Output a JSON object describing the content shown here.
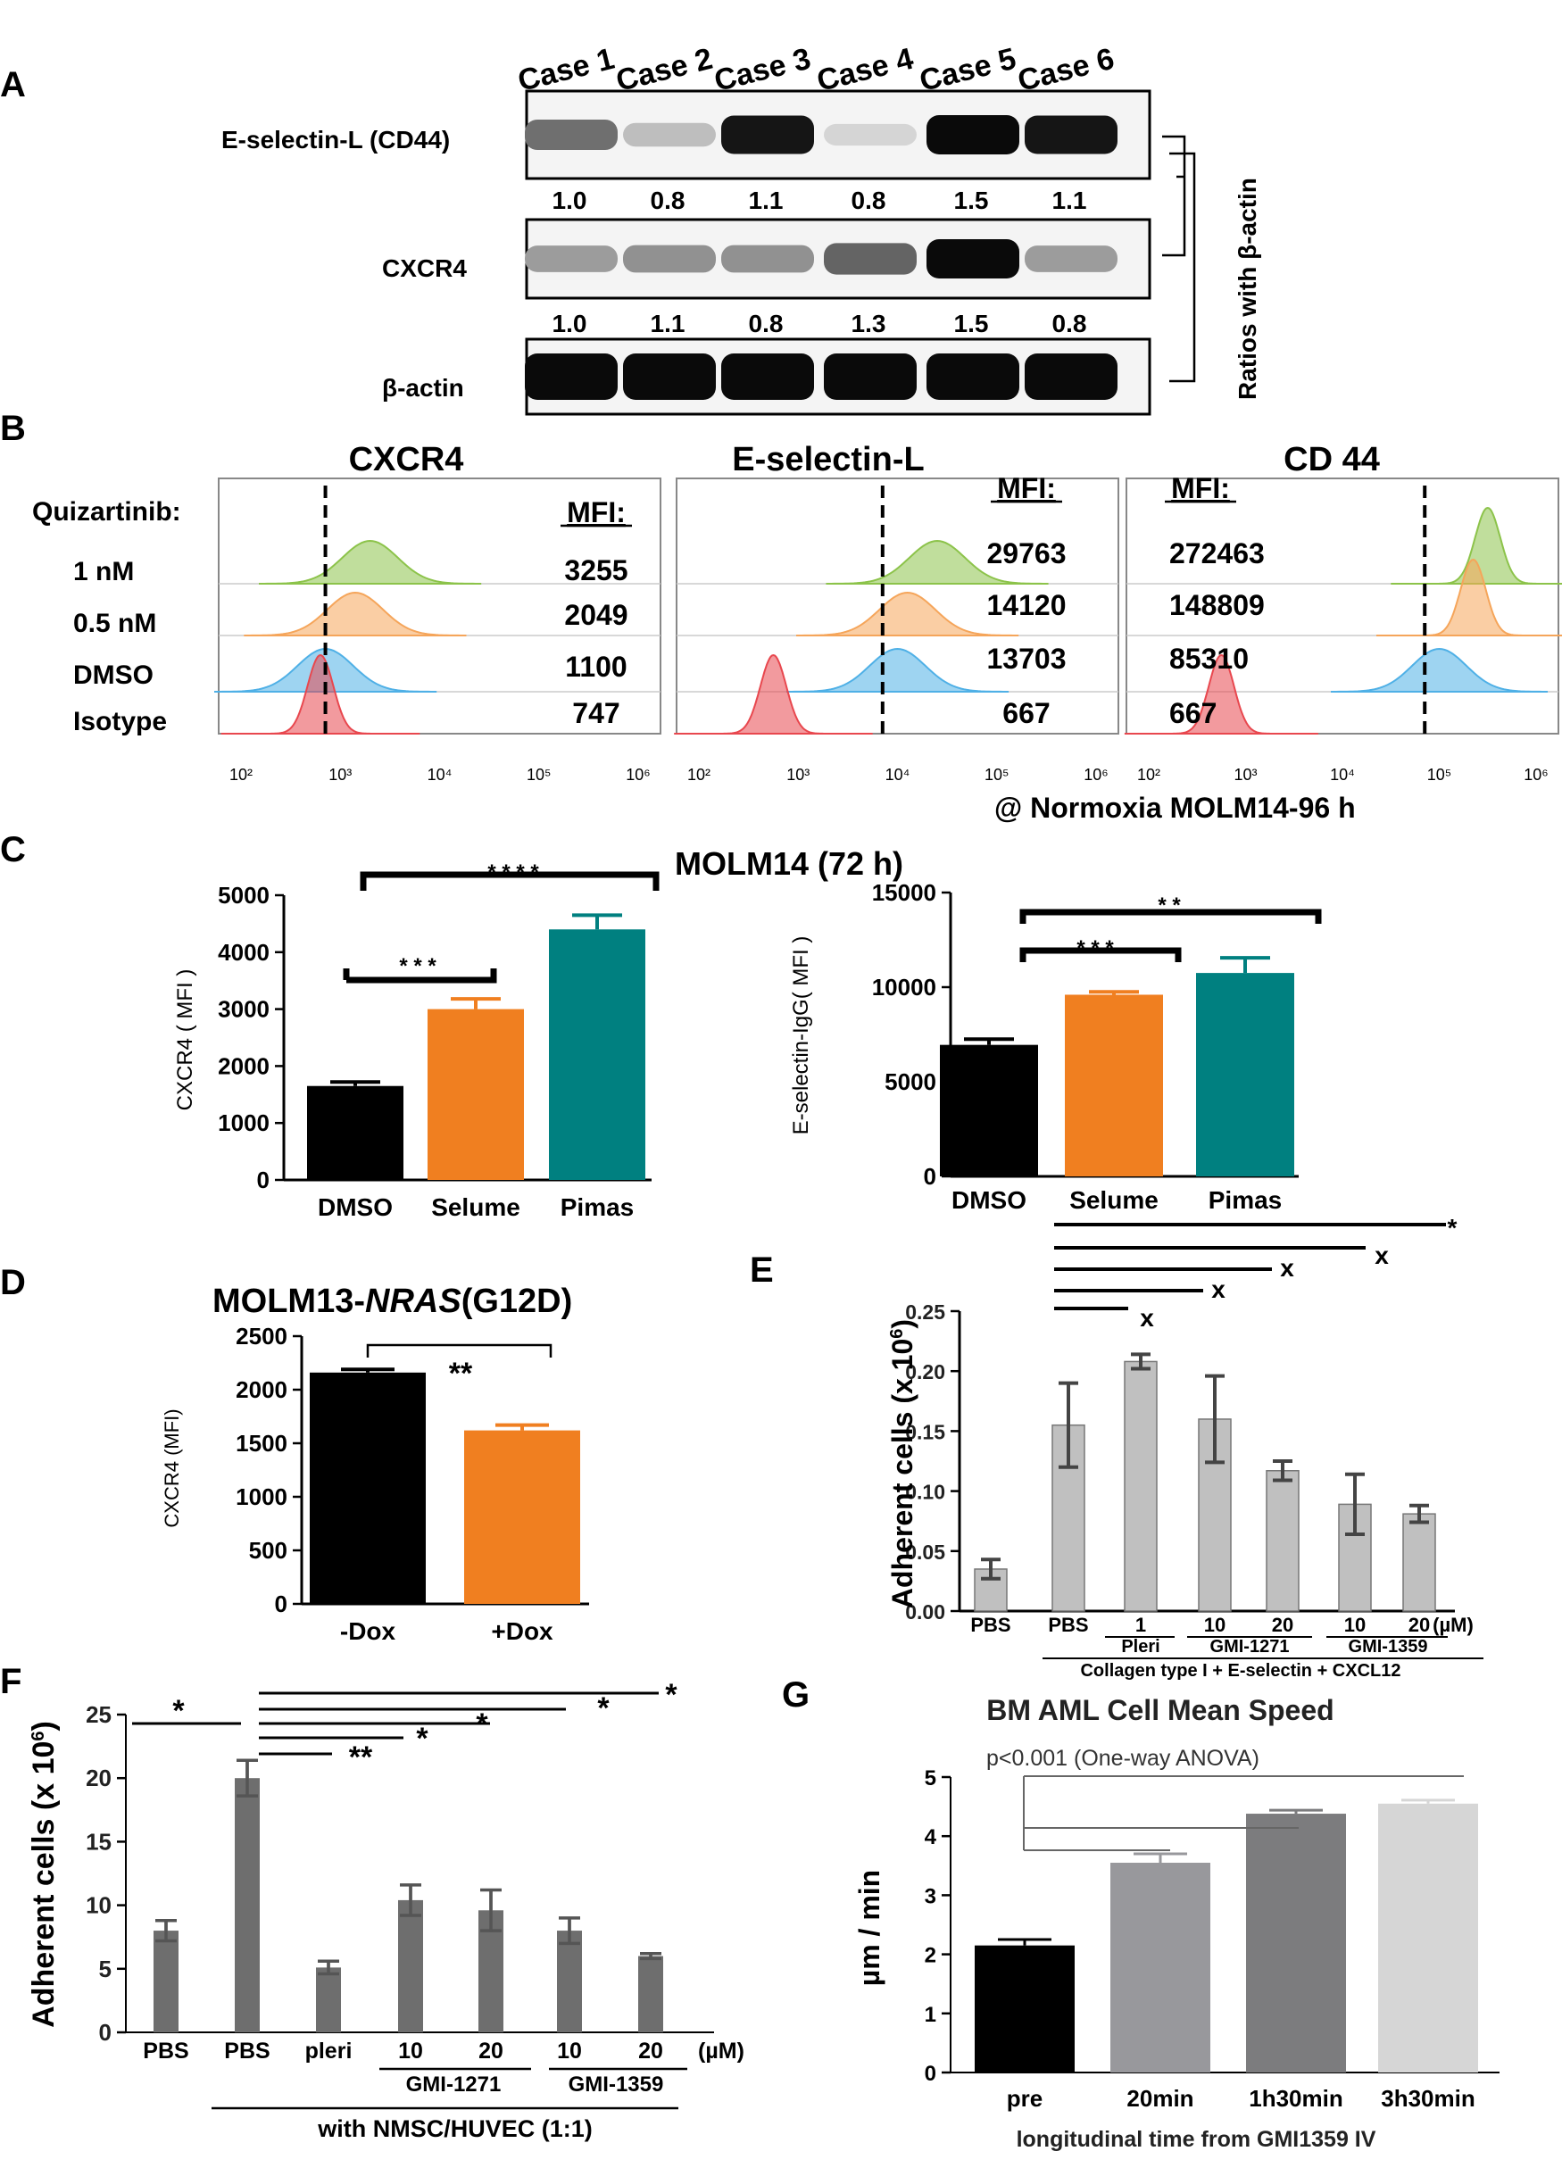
{
  "panel_letters": [
    "A",
    "B",
    "C",
    "D",
    "E",
    "F",
    "G"
  ],
  "panel_a": {
    "cases": [
      "Case 1",
      "Case 2",
      "Case 3",
      "Case 4",
      "Case 5",
      "Case 6"
    ],
    "blots": [
      {
        "label": "E-selectin-L (CD44)",
        "intensity": [
          0.55,
          0.2,
          0.95,
          0.1,
          1.0,
          0.95
        ]
      },
      {
        "label": "CXCR4",
        "intensity": [
          0.35,
          0.4,
          0.4,
          0.6,
          1.0,
          0.35
        ]
      },
      {
        "label": "β-actin",
        "intensity": [
          1.0,
          1.0,
          1.0,
          1.0,
          1.0,
          1.0
        ]
      }
    ],
    "ratios_row1": [
      "1.0",
      "0.8",
      "1.1",
      "0.8",
      "1.5",
      "1.1"
    ],
    "ratios_row2": [
      "1.0",
      "1.1",
      "0.8",
      "1.3",
      "1.5",
      "0.8"
    ],
    "side_label": "Ratios with β-actin"
  },
  "chart_data": [
    {
      "type": "histogram-overlay",
      "panel": "B",
      "row_header": "Quizartinib:",
      "row_labels": [
        "1 nM",
        "0.5 nM",
        "DMSO",
        "Isotype"
      ],
      "colors": {
        "1 nM": "#8cc34a",
        "0.5 nM": "#f5a55a",
        "DMSO": "#4fb0e6",
        "Isotype": "#e8474e"
      },
      "xaxis_ticks": [
        "10²",
        "10³",
        "10⁴",
        "10⁵",
        "10⁶"
      ],
      "mfi_label": "MFI:",
      "plots": [
        {
          "title": "CXCR4",
          "mfi": [
            "3255",
            "2049",
            "1100",
            "747"
          ],
          "peaks_log10": [
            3.3,
            3.15,
            2.85,
            2.8
          ],
          "dashed_log10": 2.85
        },
        {
          "title": "E-selectin-L",
          "mfi": [
            "29763",
            "14120",
            "13703",
            "667"
          ],
          "peaks_log10": [
            4.4,
            4.1,
            4.0,
            2.75
          ],
          "dashed_log10": 3.85
        },
        {
          "title": "CD 44",
          "mfi": [
            "272463",
            "148809",
            "85310",
            "667"
          ],
          "peaks_log10": [
            5.5,
            5.35,
            5.0,
            2.75
          ],
          "dashed_log10": 4.85
        }
      ],
      "footer": "@ Normoxia   MOLM14-96 h"
    },
    {
      "type": "bar",
      "panel": "C-left",
      "title": "MOLM14 (72 h)",
      "categories": [
        "DMSO",
        "Selume",
        "Pimas"
      ],
      "values": [
        1650,
        3000,
        4400
      ],
      "errors": [
        70,
        180,
        250
      ],
      "colors": [
        "#000000",
        "#f07f20",
        "#008080"
      ],
      "ylabel": "CXCR4 ( MFI )",
      "ylim": [
        0,
        5000
      ],
      "yticks": [
        "0",
        "1000",
        "2000",
        "3000",
        "4000",
        "5000"
      ],
      "significance": [
        {
          "from": "DMSO",
          "to": "Selume",
          "label": "* * *"
        },
        {
          "from": "DMSO",
          "to": "Pimas",
          "label": "* * * *"
        }
      ]
    },
    {
      "type": "bar",
      "panel": "C-right",
      "categories": [
        "DMSO",
        "Selume",
        "Pimas"
      ],
      "values": [
        6950,
        9600,
        10750
      ],
      "errors": [
        300,
        150,
        800
      ],
      "colors": [
        "#000000",
        "#f07f20",
        "#008080"
      ],
      "ylabel": "E-selectin-IgG( MFI )",
      "ylim": [
        0,
        15000
      ],
      "yticks": [
        "0",
        "5000",
        "10000",
        "15000"
      ],
      "significance": [
        {
          "from": "DMSO",
          "to": "Selume",
          "label": "* * *"
        },
        {
          "from": "DMSO",
          "to": "Pimas",
          "label": "* *"
        }
      ]
    },
    {
      "type": "bar",
      "panel": "D",
      "title": "MOLM13-",
      "title_italic": "NRAS",
      "title_suffix": "(G12D)",
      "categories": [
        "-Dox",
        "+Dox"
      ],
      "values": [
        2160,
        1620
      ],
      "errors": [
        30,
        50
      ],
      "colors": [
        "#000000",
        "#f07f20"
      ],
      "ylabel": "CXCR4 (MFI)",
      "ylim": [
        0,
        2500
      ],
      "yticks": [
        "0",
        "500",
        "1000",
        "1500",
        "2000",
        "2500"
      ],
      "significance": [
        {
          "from": "-Dox",
          "to": "+Dox",
          "label": "**"
        }
      ]
    },
    {
      "type": "bar",
      "panel": "E",
      "categories": [
        "PBS",
        "PBS",
        "1",
        "10",
        "20",
        "10",
        "20"
      ],
      "unit_label": "(µM)",
      "values": [
        0.035,
        0.155,
        0.208,
        0.16,
        0.117,
        0.089,
        0.081
      ],
      "errors": [
        0.008,
        0.035,
        0.006,
        0.036,
        0.008,
        0.025,
        0.007
      ],
      "ylabel": "Adherent cells (x 10",
      "ylabel_sup": "6",
      "ylabel_end": ")",
      "ylim": [
        0,
        0.25
      ],
      "yticks": [
        "0.00",
        "0.05",
        "0.10",
        "0.15",
        "0.20",
        "0.25"
      ],
      "groups": [
        "Pleri",
        "GMI-1271",
        "GMI-1359"
      ],
      "footer": "Collagen type I + E-selectin + CXCL12",
      "significance": [
        {
          "to": "1",
          "label": "x"
        },
        {
          "to": "10",
          "label": "x"
        },
        {
          "to": "10b",
          "label": "x"
        },
        {
          "to": "20b",
          "label": "*"
        }
      ]
    },
    {
      "type": "bar",
      "panel": "F",
      "categories": [
        "PBS",
        "PBS",
        "pleri",
        "10",
        "20",
        "10",
        "20"
      ],
      "unit_label": "(µM)",
      "values": [
        8.0,
        20.0,
        5.1,
        10.4,
        9.6,
        8.0,
        6.0
      ],
      "errors": [
        0.8,
        1.4,
        0.5,
        1.2,
        1.6,
        1.0,
        0.2
      ],
      "ylabel": "Adherent cells (x 10",
      "ylabel_sup": "6",
      "ylabel_end": ")",
      "ylim": [
        0,
        25
      ],
      "yticks": [
        "0",
        "5",
        "10",
        "15",
        "20",
        "25"
      ],
      "groups": [
        "GMI-1271",
        "GMI-1359"
      ],
      "footer": "with NMSC/HUVEC (1:1)",
      "significance": [
        {
          "from": "PBS",
          "to": "PBS2",
          "label": "*"
        },
        {
          "to": "pleri",
          "label": "**"
        },
        {
          "to": "10",
          "label": "*"
        },
        {
          "to": "20",
          "label": "*"
        },
        {
          "to": "10b",
          "label": "*"
        },
        {
          "to": "20b",
          "label": "*"
        }
      ]
    },
    {
      "type": "bar",
      "panel": "G",
      "title": "BM AML Cell Mean Speed",
      "annotation": "p<0.001 (One-way ANOVA)",
      "categories": [
        "pre",
        "20min",
        "1h30min",
        "3h30min"
      ],
      "values": [
        2.15,
        3.55,
        4.38,
        4.55
      ],
      "errors": [
        0.1,
        0.15,
        0.06,
        0.06
      ],
      "colors": [
        "#000000",
        "#98989c",
        "#7c7c7e",
        "#d6d6d6"
      ],
      "ylabel": "µm / min",
      "xlabel": "longitudinal time from GMI1359 IV",
      "ylim": [
        0,
        5
      ],
      "yticks": [
        "0",
        "1",
        "2",
        "3",
        "4",
        "5"
      ]
    }
  ]
}
